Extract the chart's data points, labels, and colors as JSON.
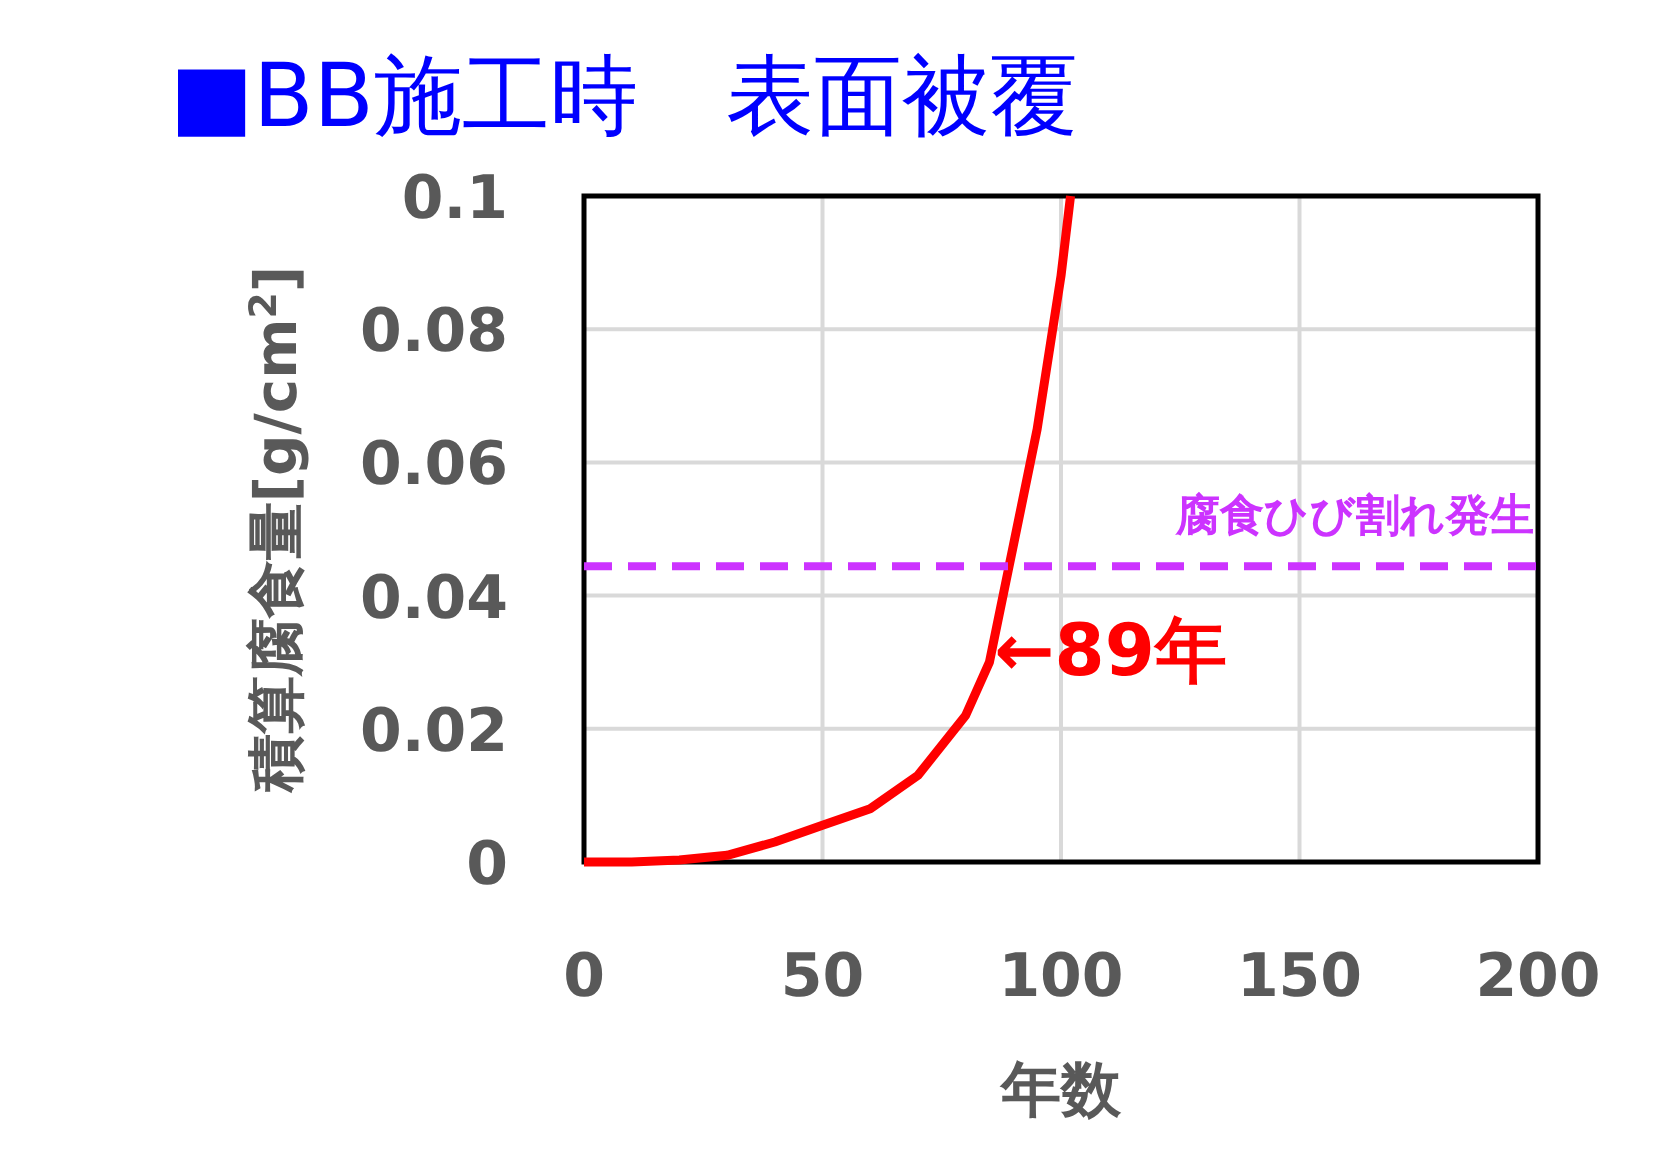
{
  "chart_data": {
    "type": "line",
    "title": "■BB施工時　表面被覆",
    "xlabel": "年数",
    "ylabel": "積算腐食量[g/cm$^{2}$]",
    "series": [
      {
        "color": "#ff0000",
        "x": [
          0,
          10,
          20,
          30,
          40,
          50,
          60,
          70,
          80,
          85,
          89,
          95,
          100,
          102
        ],
        "values": [
          0,
          0,
          0.0003,
          0.001,
          0.003,
          0.0055,
          0.008,
          0.013,
          0.022,
          0.03,
          0.044,
          0.065,
          0.088,
          0.1
        ]
      }
    ],
    "xlim": [
      0,
      200
    ],
    "ylim": [
      0,
      0.1
    ],
    "xticks": [
      0,
      50,
      100,
      150,
      200
    ],
    "yticks": [
      0,
      0.02,
      0.04,
      0.06,
      0.08,
      0.1
    ],
    "grid": true,
    "marker": "none",
    "line_style": "solid",
    "ref_lines": [
      {
        "axis": "y",
        "value": 0.0444,
        "label": "腐食ひび割れ発生",
        "color": "#cc33ff",
        "line_style": "dashed"
      }
    ],
    "annotations": [
      {
        "text": "←89年",
        "x": 86,
        "y": 0.032
      }
    ]
  }
}
